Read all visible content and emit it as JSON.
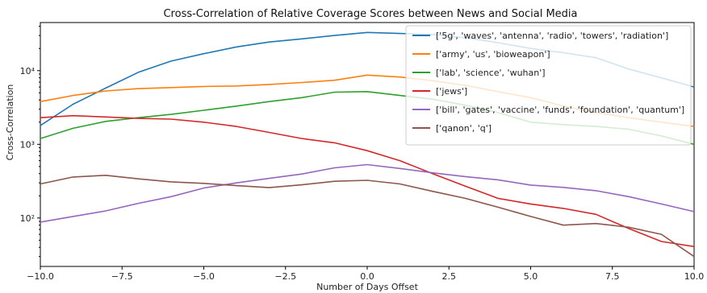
{
  "chart_data": {
    "type": "line",
    "title": "Cross-Correlation of Relative Coverage Scores between News and Social Media",
    "xlabel": "Number of Days Offset",
    "ylabel": "Cross-Correlation",
    "xlim": [
      -10,
      10
    ],
    "ylim": [
      22,
      45000
    ],
    "yscale": "log",
    "x_ticks": [
      "−10.0",
      "−7.5",
      "−5.0",
      "−2.5",
      "0.0",
      "2.5",
      "5.0",
      "7.5",
      "10.0"
    ],
    "y_ticks": [
      "10²",
      "10³",
      "10⁴"
    ],
    "legend_position": "top-right",
    "x": [
      -10,
      -9,
      -8,
      -7,
      -6,
      -5,
      -4,
      -3,
      -2,
      -1,
      0,
      1,
      2,
      3,
      4,
      5,
      6,
      7,
      8,
      9,
      10
    ],
    "series": [
      {
        "name": "['5g', 'waves', 'antenna', 'radio', 'towers', 'radiation']",
        "color": "#1f77b4",
        "values": [
          1800,
          3500,
          5800,
          9500,
          13500,
          17000,
          21000,
          24500,
          27000,
          30000,
          33000,
          32000,
          31000,
          28000,
          24000,
          20000,
          17500,
          15000,
          10500,
          8000,
          6000
        ]
      },
      {
        "name": "['army', 'us', 'bioweapon']",
        "color": "#ff7f0e",
        "values": [
          3800,
          4600,
          5300,
          5700,
          5900,
          6100,
          6200,
          6500,
          6900,
          7400,
          8700,
          8200,
          7300,
          6300,
          5200,
          4300,
          3300,
          2700,
          2300,
          2000,
          1750
        ]
      },
      {
        "name": "['lab', 'science', 'wuhan']",
        "color": "#2ca02c",
        "values": [
          1200,
          1650,
          2050,
          2300,
          2550,
          2900,
          3300,
          3800,
          4300,
          5100,
          5200,
          4600,
          4100,
          3400,
          2700,
          2000,
          1850,
          1750,
          1600,
          1300,
          1000
        ]
      },
      {
        "name": "['jews']",
        "color": "#d62728",
        "values": [
          2300,
          2450,
          2350,
          2250,
          2200,
          2000,
          1750,
          1450,
          1200,
          1050,
          820,
          600,
          400,
          270,
          185,
          155,
          135,
          112,
          72,
          48,
          41
        ]
      },
      {
        "name": "['bill', 'gates', 'vaccine', 'funds', 'foundation', 'quantum']",
        "color": "#9467bd",
        "values": [
          88,
          105,
          125,
          158,
          195,
          255,
          300,
          345,
          395,
          480,
          530,
          470,
          410,
          365,
          330,
          280,
          260,
          235,
          195,
          155,
          122
        ]
      },
      {
        "name": "['qanon', 'q']",
        "color": "#8c564b",
        "values": [
          290,
          360,
          380,
          340,
          310,
          295,
          275,
          258,
          282,
          315,
          325,
          290,
          230,
          185,
          140,
          105,
          80,
          84,
          75,
          60,
          30
        ]
      }
    ]
  }
}
